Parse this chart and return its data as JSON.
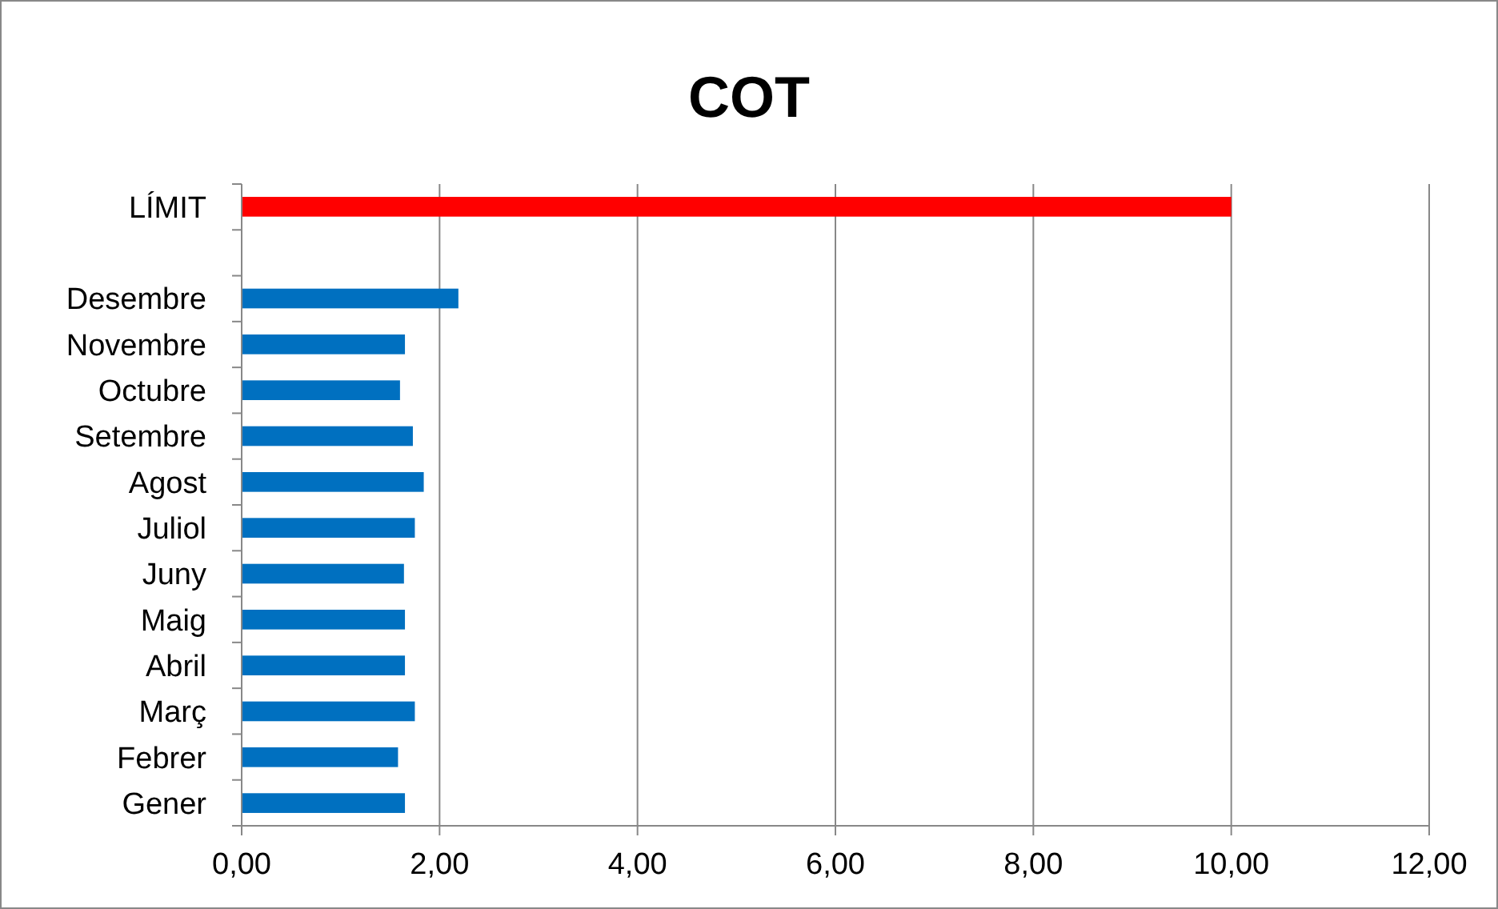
{
  "chart_data": {
    "type": "bar",
    "title": "COT",
    "orientation": "horizontal",
    "categories": [
      "LÍMIT",
      null,
      "Desembre",
      "Novembre",
      "Octubre",
      "Setembre",
      "Agost",
      "Juliol",
      "Juny",
      "Maig",
      "Abril",
      "Març",
      "Febrer",
      "Gener"
    ],
    "values": [
      10,
      null,
      2.19,
      1.65,
      1.6,
      1.73,
      1.84,
      1.75,
      1.64,
      1.65,
      1.65,
      1.75,
      1.58,
      1.65
    ],
    "colors": [
      "#ff0000",
      null,
      "#0070c0",
      "#0070c0",
      "#0070c0",
      "#0070c0",
      "#0070c0",
      "#0070c0",
      "#0070c0",
      "#0070c0",
      "#0070c0",
      "#0070c0",
      "#0070c0",
      "#0070c0"
    ],
    "xlim": [
      0,
      12
    ],
    "xticks": [
      {
        "value": 0,
        "label": "0,00"
      },
      {
        "value": 2,
        "label": "2,00"
      },
      {
        "value": 4,
        "label": "4,00"
      },
      {
        "value": 6,
        "label": "6,00"
      },
      {
        "value": 8,
        "label": "8,00"
      },
      {
        "value": 10,
        "label": "10,00"
      },
      {
        "value": 12,
        "label": "12,00"
      }
    ],
    "grid": "x"
  }
}
